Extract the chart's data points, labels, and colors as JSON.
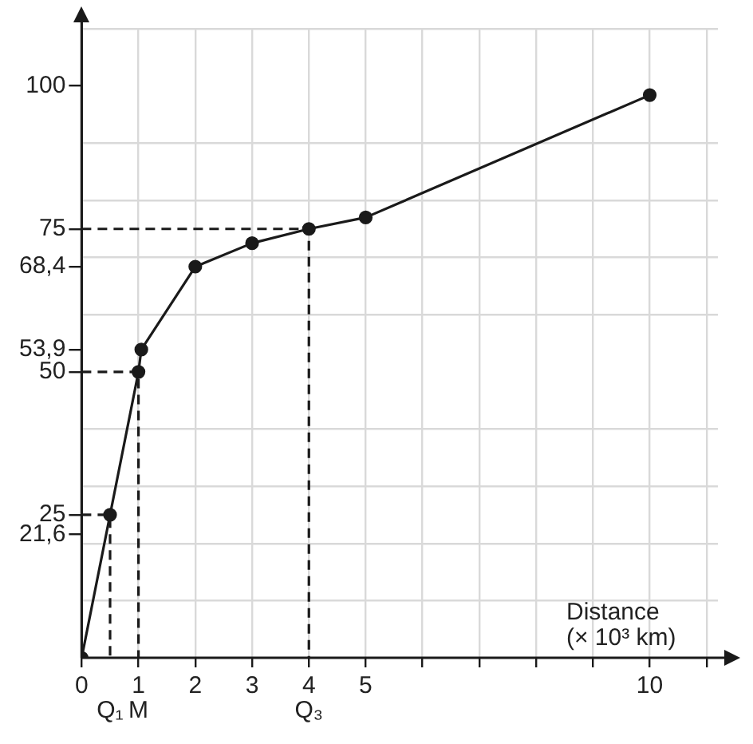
{
  "chart_data": {
    "type": "line",
    "xlabel": "Distance (× 10³ km)",
    "xlim": [
      0,
      11.2
    ],
    "ylim": [
      0,
      110
    ],
    "xticks": [
      0,
      1,
      2,
      3,
      4,
      5,
      {
        "value": 6,
        "label": null
      },
      {
        "value": 7,
        "label": null
      },
      {
        "value": 8,
        "label": null
      },
      {
        "value": 9,
        "label": null
      },
      10,
      {
        "value": 11,
        "label": null
      }
    ],
    "yticks": [
      {
        "value": 10,
        "label": null
      },
      {
        "value": 20,
        "label": null
      },
      {
        "value": 21.6,
        "label": "21,6"
      },
      25,
      {
        "value": 30,
        "label": null
      },
      {
        "value": 40,
        "label": null
      },
      50,
      {
        "value": 53.9,
        "label": "53,9"
      },
      {
        "value": 60,
        "label": null
      },
      {
        "value": 68.4,
        "label": "68,4"
      },
      {
        "value": 70,
        "label": null
      },
      75,
      {
        "value": 80,
        "label": null
      },
      {
        "value": 90,
        "label": null
      },
      100,
      {
        "value": 110,
        "label": null
      }
    ],
    "grid": true,
    "legend": false,
    "series": [
      {
        "color": "#1a1a1a",
        "marker": "circle",
        "line_style": "solid",
        "x": [
          0,
          0.5,
          1,
          1.05,
          2,
          3,
          4,
          5,
          10
        ],
        "values": [
          0,
          25,
          50,
          53.9,
          68.4,
          72.5,
          75,
          77,
          98.4
        ]
      },
      {
        "color": "#1a1a1a",
        "marker": "none",
        "line_style": "dashed",
        "x": [
          0,
          0.5,
          0.5
        ],
        "values": [
          25,
          25,
          0
        ]
      },
      {
        "color": "#1a1a1a",
        "marker": "none",
        "line_style": "dashed",
        "x": [
          0,
          1,
          1
        ],
        "values": [
          50,
          50,
          0
        ]
      },
      {
        "color": "#1a1a1a",
        "marker": "none",
        "line_style": "dashed",
        "x": [
          0,
          4,
          4
        ],
        "values": [
          75,
          75,
          0
        ]
      }
    ],
    "annotations": [
      {
        "text": "Q₁",
        "x": 0.5,
        "y": 0
      },
      {
        "text": "M",
        "x": 1,
        "y": 0
      },
      {
        "text": "Q₃",
        "x": 4,
        "y": 0
      }
    ]
  }
}
